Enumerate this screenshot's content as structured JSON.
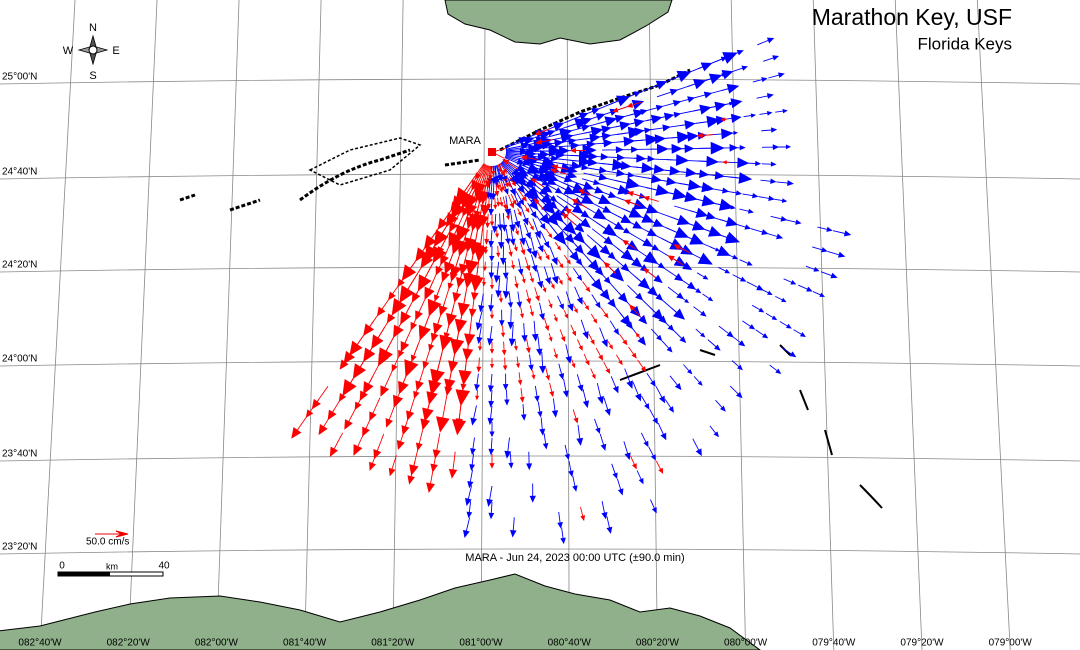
{
  "header": {
    "title": "Marathon Key, USF",
    "subtitle": "Florida Keys"
  },
  "station": {
    "label": "MARA"
  },
  "footer": {
    "timestamp": "MARA - Jun 24, 2023 00:00 UTC (±90.0 min)"
  },
  "legend": {
    "velocity_scale": "50.0 cm/s",
    "distance_start": "0",
    "distance_unit": "km",
    "distance_end": "40"
  },
  "compass": {
    "north": "N",
    "south": "S",
    "east": "E",
    "west": "W"
  },
  "latitude_labels": [
    "25°00'N",
    "24°40'N",
    "24°20'N",
    "24°00'N",
    "23°40'N",
    "23°20'N"
  ],
  "longitude_labels": [
    "082°40'W",
    "082°20'W",
    "082°00'W",
    "081°40'W",
    "081°20'W",
    "081°00'W",
    "080°40'W",
    "080°20'W",
    "080°00'W",
    "079°40'W",
    "079°20'W",
    "079°00'W"
  ]
}
